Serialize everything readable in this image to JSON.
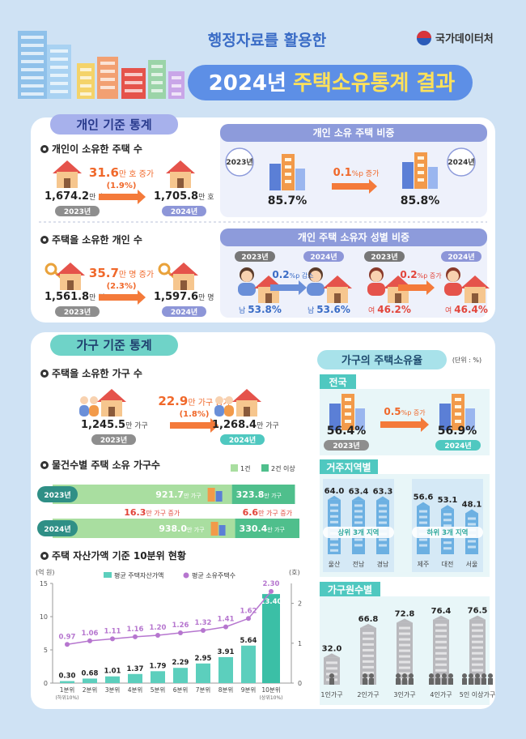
{
  "header": {
    "subtitle": "행정자료를 활용한",
    "title_year": "2024년",
    "title_main": "주택소유통계 결과",
    "agency": "국가데이터처"
  },
  "individual": {
    "tab": "개인 기준 통계",
    "houses": {
      "heading": "개인이 소유한 주택 수",
      "before_value": "1,674.2",
      "before_unit": "만 호",
      "before_year": "2023년",
      "change_value": "31.6",
      "change_unit": "만 호 증가",
      "change_pct": "(1.9%)",
      "after_value": "1,705.8",
      "after_unit": "만 호",
      "after_year": "2024년"
    },
    "house_share": {
      "title": "개인 소유 주택 비중",
      "before_year": "2023년",
      "before_value": "85.7%",
      "change_value": "0.1",
      "change_unit": "%p 증가",
      "after_value": "85.8%",
      "after_year": "2024년"
    },
    "owners": {
      "heading": "주택을 소유한 개인 수",
      "before_value": "1,561.8",
      "before_unit": "만 명",
      "before_year": "2023년",
      "change_value": "35.7",
      "change_unit": "만 명 증가",
      "change_pct": "(2.3%)",
      "after_value": "1,597.6",
      "after_unit": "만 명",
      "after_year": "2024년"
    },
    "gender": {
      "title": "개인 주택 소유자 성별 비중",
      "male": {
        "before_year": "2023년",
        "after_year": "2024년",
        "before_label": "남",
        "before_value": "53.8%",
        "change_value": "0.2",
        "change_unit": "%p 감소",
        "after_label": "남",
        "after_value": "53.6%"
      },
      "female": {
        "before_year": "2023년",
        "after_year": "2024년",
        "before_label": "여",
        "before_value": "46.2%",
        "change_value": "0.2",
        "change_unit": "%p 증가",
        "after_label": "여",
        "after_value": "46.4%"
      }
    }
  },
  "household": {
    "tab": "가구 기준 통계",
    "owners": {
      "heading": "주택을 소유한 가구 수",
      "before_value": "1,245.5",
      "before_unit": "만 가구",
      "before_year": "2023년",
      "change_value": "22.9",
      "change_unit": "만 가구 증가",
      "change_pct": "(1.8%)",
      "after_value": "1,268.4",
      "after_unit": "만 가구",
      "after_year": "2024년"
    },
    "rate": {
      "title": "가구의 주택소유율",
      "unit_note": "(단위 : %)",
      "national": {
        "tab": "전국",
        "before_value": "56.4%",
        "before_year": "2023년",
        "change_value": "0.5",
        "change_unit": "%p 증가",
        "after_value": "56.9%",
        "after_year": "2024년"
      }
    }
  },
  "chart_data": [
    {
      "type": "stacked_hbar",
      "title": "물건수별 주택 소유 가구수",
      "categories": [
        "2023년",
        "2024년"
      ],
      "unit": "만 가구",
      "series": [
        {
          "name": "1건",
          "color": "#a9dea0",
          "values": [
            921.7,
            938.0
          ],
          "value_labels": [
            "921.7",
            "938.0"
          ]
        },
        {
          "name": "2건 이상",
          "color": "#4fbf8c",
          "values": [
            323.8,
            330.4
          ]
        }
      ],
      "annotations": [
        {
          "value": "16.3",
          "text": "만 가구 증가"
        },
        {
          "value": "6.6",
          "text": "만 가구 증가"
        }
      ]
    },
    {
      "type": "combo",
      "title": "주택 자산가액 기준 10분위 현황",
      "categories": [
        "1분위",
        "2분위",
        "3분위",
        "4분위",
        "5분위",
        "6분위",
        "7분위",
        "8분위",
        "9분위",
        "10분위"
      ],
      "category_notes": [
        "(하위10%)",
        null,
        null,
        null,
        null,
        null,
        null,
        null,
        null,
        "(상위10%)"
      ],
      "y_label": "(억 원)",
      "y2_label": "(호)",
      "ylim": [
        0,
        15
      ],
      "yticks": [
        0,
        5,
        10,
        15
      ],
      "y2lim": [
        0,
        2.5
      ],
      "y2ticks": [
        0,
        1,
        2
      ],
      "series": [
        {
          "name": "평균 주택자산가액",
          "type": "bar",
          "color": "#5ccfbd",
          "values": [
            0.3,
            0.68,
            1.01,
            1.37,
            1.79,
            2.29,
            2.95,
            3.91,
            5.64,
            13.4
          ],
          "value_labels": [
            "0.30",
            "0.68",
            "1.01",
            "1.37",
            "1.79",
            "2.29",
            "2.95",
            "3.91",
            "5.64",
            "13.40"
          ]
        },
        {
          "name": "평균 소유주택수",
          "type": "line",
          "axis": "y2",
          "color": "#b676cf",
          "values": [
            0.97,
            1.06,
            1.11,
            1.16,
            1.2,
            1.26,
            1.32,
            1.41,
            1.62,
            2.3
          ],
          "value_labels": [
            "0.97",
            "1.06",
            "1.11",
            "1.16",
            "1.20",
            "1.26",
            "1.32",
            "1.41",
            "1.62",
            "2.30"
          ]
        }
      ]
    },
    {
      "type": "building_bar",
      "title": "거주지역별",
      "categories": [
        "울산",
        "전남",
        "경남",
        "제주",
        "대전",
        "서울"
      ],
      "values": [
        64.0,
        63.4,
        63.3,
        56.6,
        53.1,
        48.1
      ],
      "value_labels": [
        "64.0",
        "63.4",
        "63.3",
        "56.6",
        "53.1",
        "48.1"
      ],
      "group_labels": [
        "상위 3개 지역",
        "하위 3개 지역"
      ],
      "color": "#6cb0e2"
    },
    {
      "type": "building_bar",
      "title": "가구원수별",
      "categories": [
        "1인가구",
        "2인가구",
        "3인가구",
        "4인가구",
        "5인 이상가구"
      ],
      "values": [
        32.0,
        66.8,
        72.8,
        76.4,
        76.5
      ],
      "value_labels": [
        "32.0",
        "66.8",
        "72.8",
        "76.4",
        "76.5"
      ],
      "color": "#b9b9bd"
    }
  ]
}
